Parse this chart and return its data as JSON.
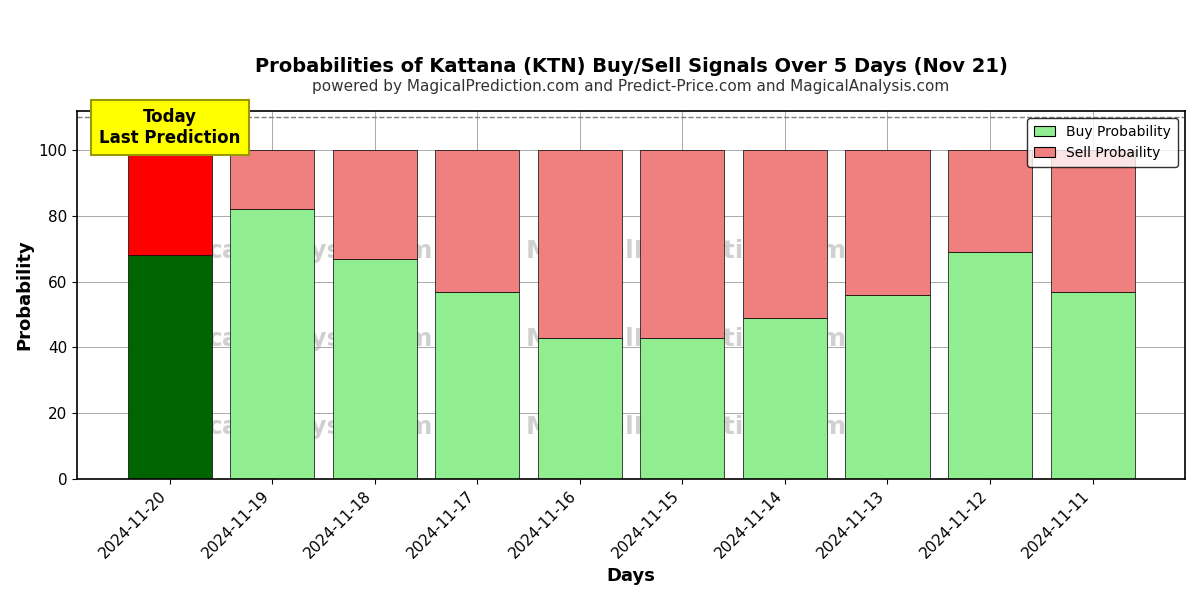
{
  "title": "Probabilities of Kattana (KTN) Buy/Sell Signals Over 5 Days (Nov 21)",
  "subtitle": "powered by MagicalPrediction.com and Predict-Price.com and MagicalAnalysis.com",
  "xlabel": "Days",
  "ylabel": "Probability",
  "categories": [
    "2024-11-20",
    "2024-11-19",
    "2024-11-18",
    "2024-11-17",
    "2024-11-16",
    "2024-11-15",
    "2024-11-14",
    "2024-11-13",
    "2024-11-12",
    "2024-11-11"
  ],
  "buy_values": [
    68,
    82,
    67,
    57,
    43,
    43,
    49,
    56,
    69,
    57
  ],
  "sell_values": [
    32,
    18,
    33,
    43,
    57,
    57,
    51,
    44,
    31,
    43
  ],
  "buy_colors": [
    "#006400",
    "#90EE90",
    "#90EE90",
    "#90EE90",
    "#90EE90",
    "#90EE90",
    "#90EE90",
    "#90EE90",
    "#90EE90",
    "#90EE90"
  ],
  "sell_colors": [
    "#FF0000",
    "#F08080",
    "#F08080",
    "#F08080",
    "#F08080",
    "#F08080",
    "#F08080",
    "#F08080",
    "#F08080",
    "#F08080"
  ],
  "today_annotation": "Today\nLast Prediction",
  "today_annotation_color": "#FFFF00",
  "today_annotation_text_color": "#000000",
  "legend_buy_label": "Buy Probability",
  "legend_sell_label": "Sell Probaility",
  "ylim": [
    0,
    112
  ],
  "yticks": [
    0,
    20,
    40,
    60,
    80,
    100
  ],
  "dashed_line_y": 110,
  "background_color": "#ffffff",
  "plot_bg_color": "#ffffff",
  "grid_color": "#aaaaaa",
  "watermark_texts": [
    "calAnalysis.com",
    "MagicalPrediction.com",
    "calAnalysis.com",
    "MagicalPrediction.com"
  ],
  "watermark_color": "#d0d0d0",
  "bar_edge_color": "#000000",
  "bar_linewidth": 0.5,
  "title_fontsize": 14,
  "subtitle_fontsize": 11,
  "axis_label_fontsize": 13,
  "tick_fontsize": 11
}
